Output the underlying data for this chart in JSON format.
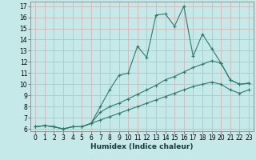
{
  "title": "",
  "xlabel": "Humidex (Indice chaleur)",
  "bg_color": "#c5e8e8",
  "line_color": "#2d7d6e",
  "grid_color": "#d4b8b8",
  "xlim": [
    -0.5,
    23.5
  ],
  "ylim": [
    5.8,
    17.4
  ],
  "xticks": [
    0,
    1,
    2,
    3,
    4,
    5,
    6,
    7,
    8,
    9,
    10,
    11,
    12,
    13,
    14,
    15,
    16,
    17,
    18,
    19,
    20,
    21,
    22,
    23
  ],
  "yticks": [
    6,
    7,
    8,
    9,
    10,
    11,
    12,
    13,
    14,
    15,
    16,
    17
  ],
  "line1_x": [
    0,
    1,
    2,
    3,
    4,
    5,
    6,
    7,
    8,
    9,
    10,
    11,
    12,
    13,
    14,
    15,
    16,
    17,
    18,
    19,
    20,
    21,
    22,
    23
  ],
  "line1_y": [
    6.2,
    6.3,
    6.2,
    6.0,
    6.2,
    6.2,
    6.5,
    8.0,
    9.5,
    10.8,
    11.0,
    13.4,
    12.4,
    16.2,
    16.3,
    15.2,
    17.0,
    12.5,
    14.5,
    13.2,
    11.9,
    10.4,
    10.0,
    10.1
  ],
  "line2_x": [
    0,
    1,
    2,
    3,
    4,
    5,
    6,
    7,
    8,
    9,
    10,
    11,
    12,
    13,
    14,
    15,
    16,
    17,
    18,
    19,
    20,
    21,
    22,
    23
  ],
  "line2_y": [
    6.2,
    6.3,
    6.2,
    6.0,
    6.2,
    6.2,
    6.5,
    7.5,
    8.0,
    8.3,
    8.7,
    9.1,
    9.5,
    9.9,
    10.4,
    10.7,
    11.1,
    11.5,
    11.8,
    12.1,
    11.9,
    10.4,
    10.0,
    10.1
  ],
  "line3_x": [
    0,
    1,
    2,
    3,
    4,
    5,
    6,
    7,
    8,
    9,
    10,
    11,
    12,
    13,
    14,
    15,
    16,
    17,
    18,
    19,
    20,
    21,
    22,
    23
  ],
  "line3_y": [
    6.2,
    6.3,
    6.2,
    6.0,
    6.2,
    6.2,
    6.5,
    6.8,
    7.1,
    7.4,
    7.7,
    8.0,
    8.3,
    8.6,
    8.9,
    9.2,
    9.5,
    9.8,
    10.0,
    10.2,
    10.0,
    9.5,
    9.2,
    9.5
  ],
  "marker": "+",
  "markersize": 3,
  "linewidth": 0.8,
  "tick_fontsize": 5.5,
  "xlabel_fontsize": 6.5
}
